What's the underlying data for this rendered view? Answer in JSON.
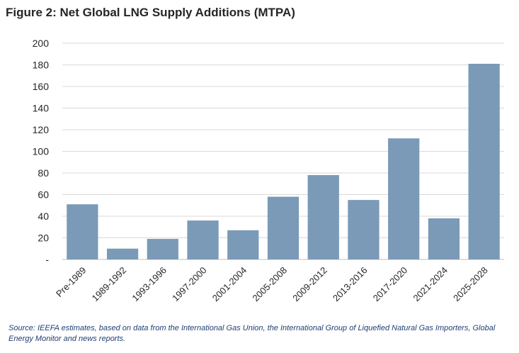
{
  "chart_data": {
    "type": "bar",
    "title": "Figure 2: Net Global LNG Supply Additions (MTPA)",
    "categories": [
      "Pre-1989",
      "1989-1992",
      "1993-1996",
      "1997-2000",
      "2001-2004",
      "2005-2008",
      "2009-2012",
      "2013-2016",
      "2017-2020",
      "2021-2024",
      "2025-2028"
    ],
    "values": [
      51,
      10,
      19,
      36,
      27,
      58,
      78,
      55,
      112,
      38,
      181
    ],
    "ylim": [
      0,
      200
    ],
    "yticks": [
      "-",
      "20",
      "40",
      "60",
      "80",
      "100",
      "120",
      "140",
      "160",
      "180",
      "200"
    ],
    "xlabel": "",
    "ylabel": "",
    "grid": true,
    "bar_color": "#7b9ab7",
    "grid_color": "#d9d9d9"
  },
  "source_note": "Source: IEEFA estimates, based on data from the International Gas Union, the International Group of Liquefied Natural Gas Importers, Global Energy Monitor and news reports."
}
